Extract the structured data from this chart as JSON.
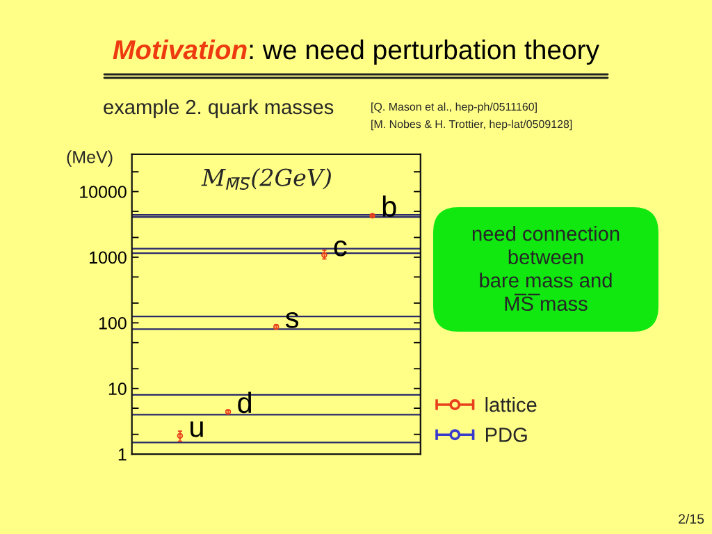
{
  "chart_data": {
    "type": "scatter",
    "title": "Motivation: we need perturbation theory",
    "subtitle": "example 2. quark masses",
    "ylabel": "(MeV)",
    "categories": [
      null,
      null,
      null,
      null,
      null
    ],
    "series": [
      {
        "name": "lattice",
        "color": "#e8401c",
        "values": [
          1.9,
          4.4,
          87,
          1080,
          4300
        ],
        "errors": [
          [
            1.57,
            2.24
          ],
          0.3,
          6,
          [
            940,
            1280
          ],
          100
        ]
      },
      {
        "name": "PDG",
        "color": "#3a3acc",
        "values": [
          null,
          null,
          null,
          null,
          null
        ]
      }
    ],
    "ylim": [
      1,
      37000
    ],
    "yticks": [
      1,
      {
        "value": 2,
        "label": null
      },
      {
        "value": 5,
        "label": null
      },
      10,
      {
        "value": 20,
        "label": null
      },
      {
        "value": 50,
        "label": null
      },
      100,
      {
        "value": 200,
        "label": null
      },
      {
        "value": 500,
        "label": null
      },
      1000,
      {
        "value": 2000,
        "label": null
      },
      {
        "value": 5000,
        "label": null
      },
      10000,
      {
        "value": 20000,
        "label": null
      }
    ],
    "log": true,
    "marker": "circle",
    "tick_labels": "y",
    "legend": "bottom right",
    "ref_lines": [
      {
        "axis": "y",
        "value": 1.5,
        "color": "#2a2a6a"
      },
      {
        "axis": "y",
        "value": 4,
        "color": "#2a2a6a"
      },
      {
        "axis": "y",
        "value": 8,
        "color": "#2a2a6a"
      },
      {
        "axis": "y",
        "value": 80,
        "color": "#2a2a6a"
      },
      {
        "axis": "y",
        "value": 125,
        "color": "#2a2a6a"
      },
      {
        "axis": "y",
        "value": 1150,
        "color": "#2a2a6a"
      },
      {
        "axis": "y",
        "value": 1350,
        "color": "#2a2a6a"
      },
      {
        "axis": "y",
        "value": 4100,
        "color": "#2a2a6a"
      },
      {
        "axis": "y",
        "value": 4400,
        "color": "#2a2a6a"
      }
    ],
    "annotations": [
      "[Q. Mason et al., hep-ph/0511160]",
      "[M. Nobes & H. Trottier, hep-lat/0509128]",
      "M$_{M̅S̅}$(2GeV)",
      "need connection\nbetween\nbare mass and\nM̅S̅ mass",
      "2/15",
      "u",
      "d",
      "s",
      "c",
      "b"
    ]
  }
}
